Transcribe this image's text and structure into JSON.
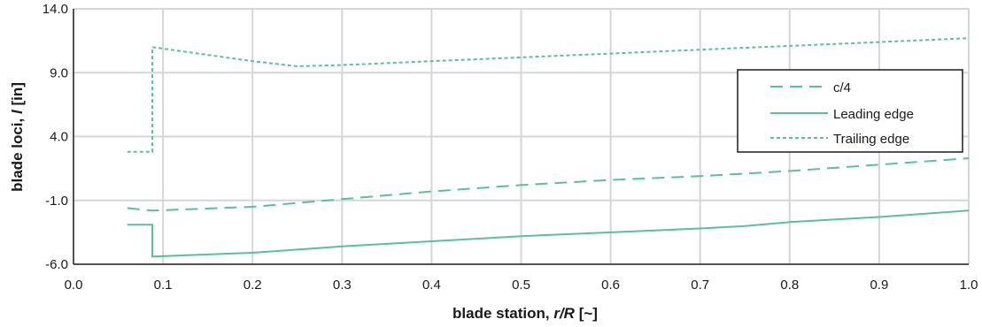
{
  "chart_data": {
    "type": "line",
    "xlabel": "blade station, r/R [~]",
    "xlabel_parts": {
      "prefix": "blade station, ",
      "var": "r/R",
      "suffix": " [~]"
    },
    "ylabel": "blade loci, l [in]",
    "ylabel_parts": {
      "prefix": "blade loci, ",
      "var": "l",
      "suffix": " [in]"
    },
    "xlim": [
      0.0,
      1.0
    ],
    "ylim": [
      -6.0,
      14.0
    ],
    "x_ticks": [
      "0.0",
      "0.1",
      "0.2",
      "0.3",
      "0.4",
      "0.5",
      "0.6",
      "0.7",
      "0.8",
      "0.9",
      "1.0"
    ],
    "y_ticks": [
      "-6.0",
      "-1.0",
      "4.0",
      "9.0",
      "14.0"
    ],
    "x_tick_values": [
      0.0,
      0.1,
      0.2,
      0.3,
      0.4,
      0.5,
      0.6,
      0.7,
      0.8,
      0.9,
      1.0
    ],
    "y_tick_values": [
      -6.0,
      -1.0,
      4.0,
      9.0,
      14.0
    ],
    "grid": true,
    "legend_position": "right",
    "series": [
      {
        "name": "c/4",
        "style": "dashed",
        "color": "#5bbf9b",
        "x": [
          0.06,
          0.088,
          0.2,
          0.3,
          0.4,
          0.5,
          0.6,
          0.7,
          0.8,
          0.9,
          1.0
        ],
        "y": [
          -1.6,
          -1.8,
          -1.5,
          -0.9,
          -0.3,
          0.2,
          0.6,
          0.9,
          1.3,
          1.8,
          2.3
        ]
      },
      {
        "name": "Leading edge",
        "style": "solid",
        "color": "#5bbf9b",
        "x": [
          0.06,
          0.088,
          0.088,
          0.2,
          0.3,
          0.4,
          0.5,
          0.6,
          0.7,
          0.75,
          0.8,
          0.9,
          1.0
        ],
        "y": [
          -2.9,
          -2.9,
          -5.4,
          -5.1,
          -4.6,
          -4.2,
          -3.8,
          -3.5,
          -3.2,
          -3.0,
          -2.7,
          -2.3,
          -1.8
        ]
      },
      {
        "name": "Trailing edge",
        "style": "dotted",
        "color": "#5bbf9b",
        "x": [
          0.06,
          0.088,
          0.088,
          0.2,
          0.25,
          0.3,
          0.4,
          0.5,
          0.6,
          0.7,
          0.8,
          0.9,
          1.0
        ],
        "y": [
          2.8,
          2.8,
          11.0,
          9.9,
          9.5,
          9.6,
          9.9,
          10.2,
          10.5,
          10.8,
          11.1,
          11.4,
          11.7
        ]
      }
    ]
  },
  "colors": {
    "grid": "#d6d6d6",
    "axis": "#1a1a1a",
    "text": "#1a1a1a"
  }
}
